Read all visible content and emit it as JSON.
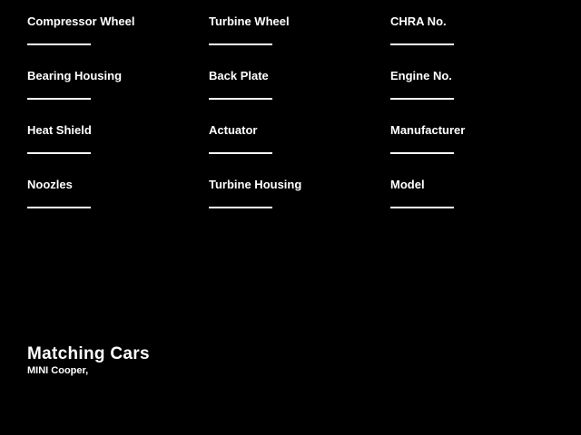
{
  "theme": {
    "background_color": "#000000",
    "text_color": "#ffffff",
    "line_color": "#ffffff"
  },
  "fields": [
    {
      "label": "Compressor Wheel",
      "value": ""
    },
    {
      "label": "Turbine Wheel",
      "value": ""
    },
    {
      "label": "CHRA No.",
      "value": ""
    },
    {
      "label": "Bearing Housing",
      "value": ""
    },
    {
      "label": "Back Plate",
      "value": ""
    },
    {
      "label": "Engine No.",
      "value": ""
    },
    {
      "label": "Heat Shield",
      "value": ""
    },
    {
      "label": "Actuator",
      "value": ""
    },
    {
      "label": "Manufacturer",
      "value": ""
    },
    {
      "label": "Noozles",
      "value": ""
    },
    {
      "label": "Turbine Housing",
      "value": ""
    },
    {
      "label": "Model",
      "value": ""
    }
  ],
  "matching_cars": {
    "title": "Matching Cars",
    "cars": "MINI Cooper,"
  }
}
